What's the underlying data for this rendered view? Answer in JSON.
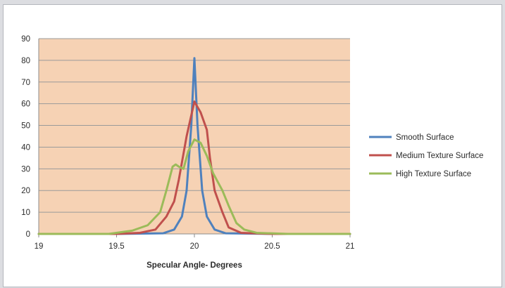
{
  "chart_data": {
    "type": "line",
    "title": "",
    "xlabel": "Specular Angle- Degrees",
    "ylabel": "",
    "xlim": [
      19,
      21
    ],
    "ylim": [
      0,
      90
    ],
    "x_ticks": [
      "19",
      "19.5",
      "20",
      "20.5",
      "21"
    ],
    "y_ticks": [
      "0",
      "10",
      "20",
      "30",
      "40",
      "50",
      "60",
      "70",
      "80",
      "90"
    ],
    "grid": "horizontal",
    "legend_position": "right",
    "colors": {
      "plot_background": "#f6d2b4",
      "gridline": "#9a9a9a",
      "axis": "#8c8c8c"
    },
    "series": [
      {
        "name": "Smooth Surface",
        "color": "#4f81bd",
        "points": [
          [
            19,
            0
          ],
          [
            19.5,
            0
          ],
          [
            19.8,
            0.3
          ],
          [
            19.87,
            2
          ],
          [
            19.92,
            8
          ],
          [
            19.95,
            20
          ],
          [
            19.98,
            50
          ],
          [
            20.0,
            81
          ],
          [
            20.02,
            50
          ],
          [
            20.05,
            20
          ],
          [
            20.08,
            8
          ],
          [
            20.13,
            2
          ],
          [
            20.2,
            0.3
          ],
          [
            20.5,
            0
          ],
          [
            21,
            0
          ]
        ]
      },
      {
        "name": "Medium Texture Surface",
        "color": "#c0504d",
        "points": [
          [
            19,
            0
          ],
          [
            19.5,
            0
          ],
          [
            19.65,
            0.5
          ],
          [
            19.75,
            2
          ],
          [
            19.82,
            8
          ],
          [
            19.87,
            15
          ],
          [
            19.9,
            25
          ],
          [
            19.95,
            45
          ],
          [
            20.0,
            61
          ],
          [
            20.04,
            56
          ],
          [
            20.08,
            48
          ],
          [
            20.1,
            35
          ],
          [
            20.13,
            20
          ],
          [
            20.18,
            10
          ],
          [
            20.22,
            3
          ],
          [
            20.3,
            0.5
          ],
          [
            20.5,
            0
          ],
          [
            21,
            0
          ]
        ]
      },
      {
        "name": "High Texture Surface",
        "color": "#9bbb59",
        "points": [
          [
            19,
            0
          ],
          [
            19.45,
            0
          ],
          [
            19.6,
            1.5
          ],
          [
            19.7,
            4
          ],
          [
            19.78,
            10
          ],
          [
            19.82,
            20
          ],
          [
            19.86,
            31
          ],
          [
            19.88,
            32
          ],
          [
            19.9,
            31
          ],
          [
            19.93,
            30
          ],
          [
            19.96,
            38
          ],
          [
            20.0,
            43.5
          ],
          [
            20.04,
            42
          ],
          [
            20.08,
            36
          ],
          [
            20.12,
            28
          ],
          [
            20.18,
            20
          ],
          [
            20.22,
            13
          ],
          [
            20.27,
            5
          ],
          [
            20.32,
            2
          ],
          [
            20.4,
            0.5
          ],
          [
            20.6,
            0
          ],
          [
            21,
            0
          ]
        ]
      }
    ]
  }
}
